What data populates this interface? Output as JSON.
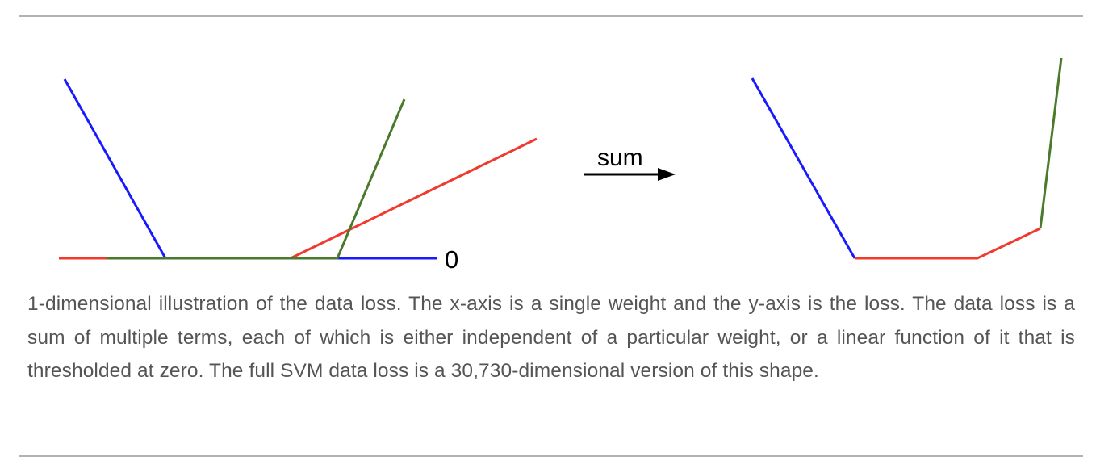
{
  "figure": {
    "left_panel": {
      "zero_label": "0",
      "lines": [
        {
          "name": "blue",
          "color": "#1a1aff"
        },
        {
          "name": "green",
          "color": "#4a7a2c"
        },
        {
          "name": "red",
          "color": "#f03a2e"
        }
      ]
    },
    "arrow": {
      "label": "sum",
      "color": "#000000"
    },
    "right_panel": {
      "segments": [
        {
          "name": "blue",
          "color": "#1a1aff"
        },
        {
          "name": "red",
          "color": "#f03a2e"
        },
        {
          "name": "green",
          "color": "#4a7a2c"
        }
      ]
    }
  },
  "caption": "1-dimensional illustration of the data loss. The x-axis is a single weight and the y-axis is the loss. The data loss is a sum of multiple terms, each of which is either independent of a particular weight, or a linear function of it that is thresholded at zero. The full SVM data loss is a 30,730-dimensional version of this shape."
}
